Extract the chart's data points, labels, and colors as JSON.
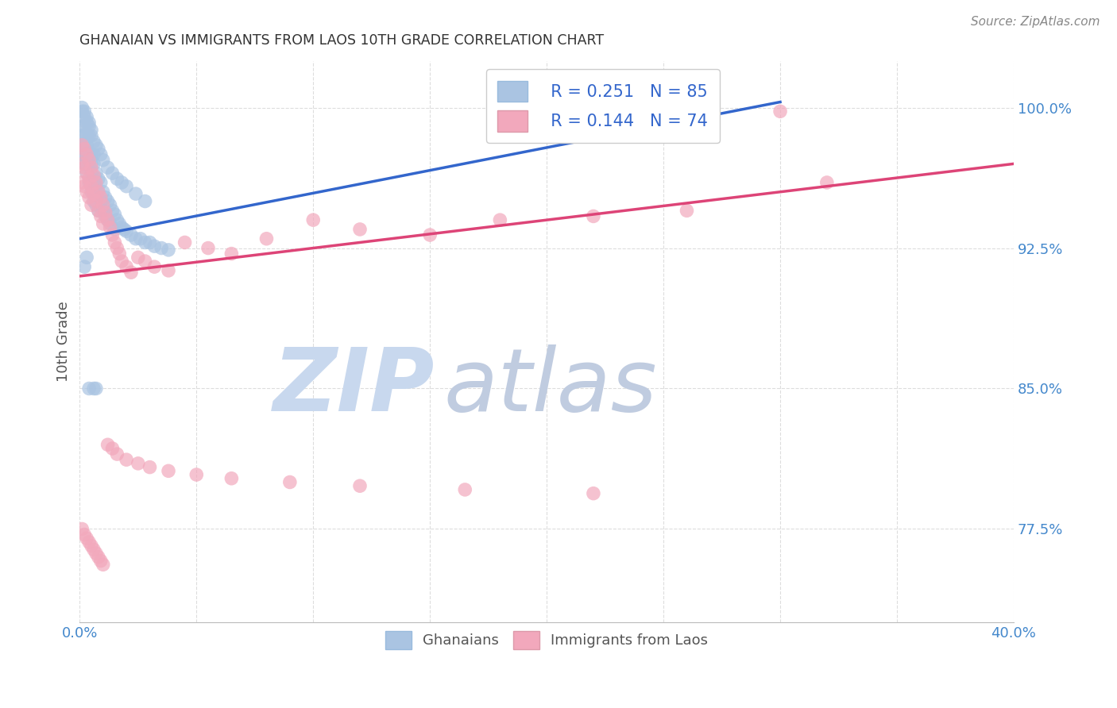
{
  "title": "GHANAIAN VS IMMIGRANTS FROM LAOS 10TH GRADE CORRELATION CHART",
  "source": "Source: ZipAtlas.com",
  "ylabel": "10th Grade",
  "yticks": [
    0.775,
    0.85,
    0.925,
    1.0
  ],
  "ytick_labels": [
    "77.5%",
    "85.0%",
    "92.5%",
    "100.0%"
  ],
  "xmin": 0.0,
  "xmax": 0.4,
  "ymin": 0.725,
  "ymax": 1.025,
  "legend_r_blue": "R = 0.251",
  "legend_n_blue": "N = 85",
  "legend_r_pink": "R = 0.144",
  "legend_n_pink": "N = 74",
  "blue_color": "#aac4e2",
  "pink_color": "#f2a8bc",
  "blue_line_color": "#3366cc",
  "pink_line_color": "#dd4477",
  "title_color": "#333333",
  "source_color": "#888888",
  "axis_label_color": "#4488cc",
  "watermark_zip_color": "#c8d8ee",
  "watermark_atlas_color": "#c0cce0",
  "background_color": "#ffffff",
  "grid_color": "#dddddd",
  "blue_line_x0": 0.0,
  "blue_line_x1": 0.3,
  "blue_line_y0": 0.93,
  "blue_line_y1": 1.003,
  "pink_line_x0": 0.0,
  "pink_line_x1": 0.4,
  "pink_line_y0": 0.91,
  "pink_line_y1": 0.97,
  "blue_scatter_x": [
    0.001,
    0.001,
    0.001,
    0.001,
    0.002,
    0.002,
    0.002,
    0.002,
    0.002,
    0.003,
    0.003,
    0.003,
    0.003,
    0.003,
    0.004,
    0.004,
    0.004,
    0.004,
    0.005,
    0.005,
    0.005,
    0.005,
    0.006,
    0.006,
    0.006,
    0.006,
    0.007,
    0.007,
    0.007,
    0.008,
    0.008,
    0.008,
    0.009,
    0.009,
    0.01,
    0.01,
    0.011,
    0.011,
    0.012,
    0.012,
    0.013,
    0.013,
    0.014,
    0.015,
    0.015,
    0.016,
    0.017,
    0.018,
    0.019,
    0.02,
    0.022,
    0.024,
    0.026,
    0.028,
    0.03,
    0.032,
    0.035,
    0.038,
    0.001,
    0.001,
    0.002,
    0.002,
    0.003,
    0.003,
    0.004,
    0.004,
    0.005,
    0.005,
    0.006,
    0.007,
    0.008,
    0.009,
    0.01,
    0.012,
    0.014,
    0.016,
    0.018,
    0.02,
    0.024,
    0.028,
    0.003,
    0.002,
    0.006,
    0.004,
    0.007
  ],
  "blue_scatter_y": [
    0.99,
    0.985,
    0.98,
    0.975,
    0.99,
    0.985,
    0.98,
    0.975,
    0.97,
    0.985,
    0.98,
    0.975,
    0.97,
    0.965,
    0.985,
    0.975,
    0.97,
    0.96,
    0.975,
    0.97,
    0.965,
    0.955,
    0.975,
    0.97,
    0.96,
    0.95,
    0.965,
    0.958,
    0.948,
    0.962,
    0.955,
    0.945,
    0.96,
    0.95,
    0.955,
    0.945,
    0.952,
    0.942,
    0.95,
    0.94,
    0.948,
    0.938,
    0.945,
    0.943,
    0.935,
    0.94,
    0.938,
    0.936,
    0.935,
    0.934,
    0.932,
    0.93,
    0.93,
    0.928,
    0.928,
    0.926,
    0.925,
    0.924,
    0.998,
    1.0,
    0.998,
    0.995,
    0.995,
    0.992,
    0.992,
    0.99,
    0.988,
    0.985,
    0.982,
    0.98,
    0.978,
    0.975,
    0.972,
    0.968,
    0.965,
    0.962,
    0.96,
    0.958,
    0.954,
    0.95,
    0.92,
    0.915,
    0.85,
    0.85,
    0.85
  ],
  "pink_scatter_x": [
    0.001,
    0.001,
    0.001,
    0.002,
    0.002,
    0.002,
    0.003,
    0.003,
    0.003,
    0.004,
    0.004,
    0.004,
    0.005,
    0.005,
    0.005,
    0.006,
    0.006,
    0.007,
    0.007,
    0.008,
    0.008,
    0.009,
    0.009,
    0.01,
    0.01,
    0.011,
    0.012,
    0.013,
    0.014,
    0.015,
    0.016,
    0.017,
    0.018,
    0.02,
    0.022,
    0.025,
    0.028,
    0.032,
    0.038,
    0.045,
    0.055,
    0.065,
    0.08,
    0.1,
    0.12,
    0.15,
    0.18,
    0.22,
    0.26,
    0.32,
    0.001,
    0.002,
    0.003,
    0.004,
    0.005,
    0.006,
    0.007,
    0.008,
    0.009,
    0.01,
    0.012,
    0.014,
    0.016,
    0.02,
    0.025,
    0.03,
    0.038,
    0.05,
    0.065,
    0.09,
    0.12,
    0.165,
    0.22,
    0.3
  ],
  "pink_scatter_y": [
    0.98,
    0.97,
    0.96,
    0.978,
    0.968,
    0.958,
    0.975,
    0.965,
    0.955,
    0.972,
    0.962,
    0.952,
    0.968,
    0.958,
    0.948,
    0.964,
    0.954,
    0.96,
    0.95,
    0.955,
    0.945,
    0.952,
    0.942,
    0.948,
    0.938,
    0.944,
    0.94,
    0.936,
    0.932,
    0.928,
    0.925,
    0.922,
    0.918,
    0.915,
    0.912,
    0.92,
    0.918,
    0.915,
    0.913,
    0.928,
    0.925,
    0.922,
    0.93,
    0.94,
    0.935,
    0.932,
    0.94,
    0.942,
    0.945,
    0.96,
    0.775,
    0.772,
    0.77,
    0.768,
    0.766,
    0.764,
    0.762,
    0.76,
    0.758,
    0.756,
    0.82,
    0.818,
    0.815,
    0.812,
    0.81,
    0.808,
    0.806,
    0.804,
    0.802,
    0.8,
    0.798,
    0.796,
    0.794,
    0.998
  ]
}
